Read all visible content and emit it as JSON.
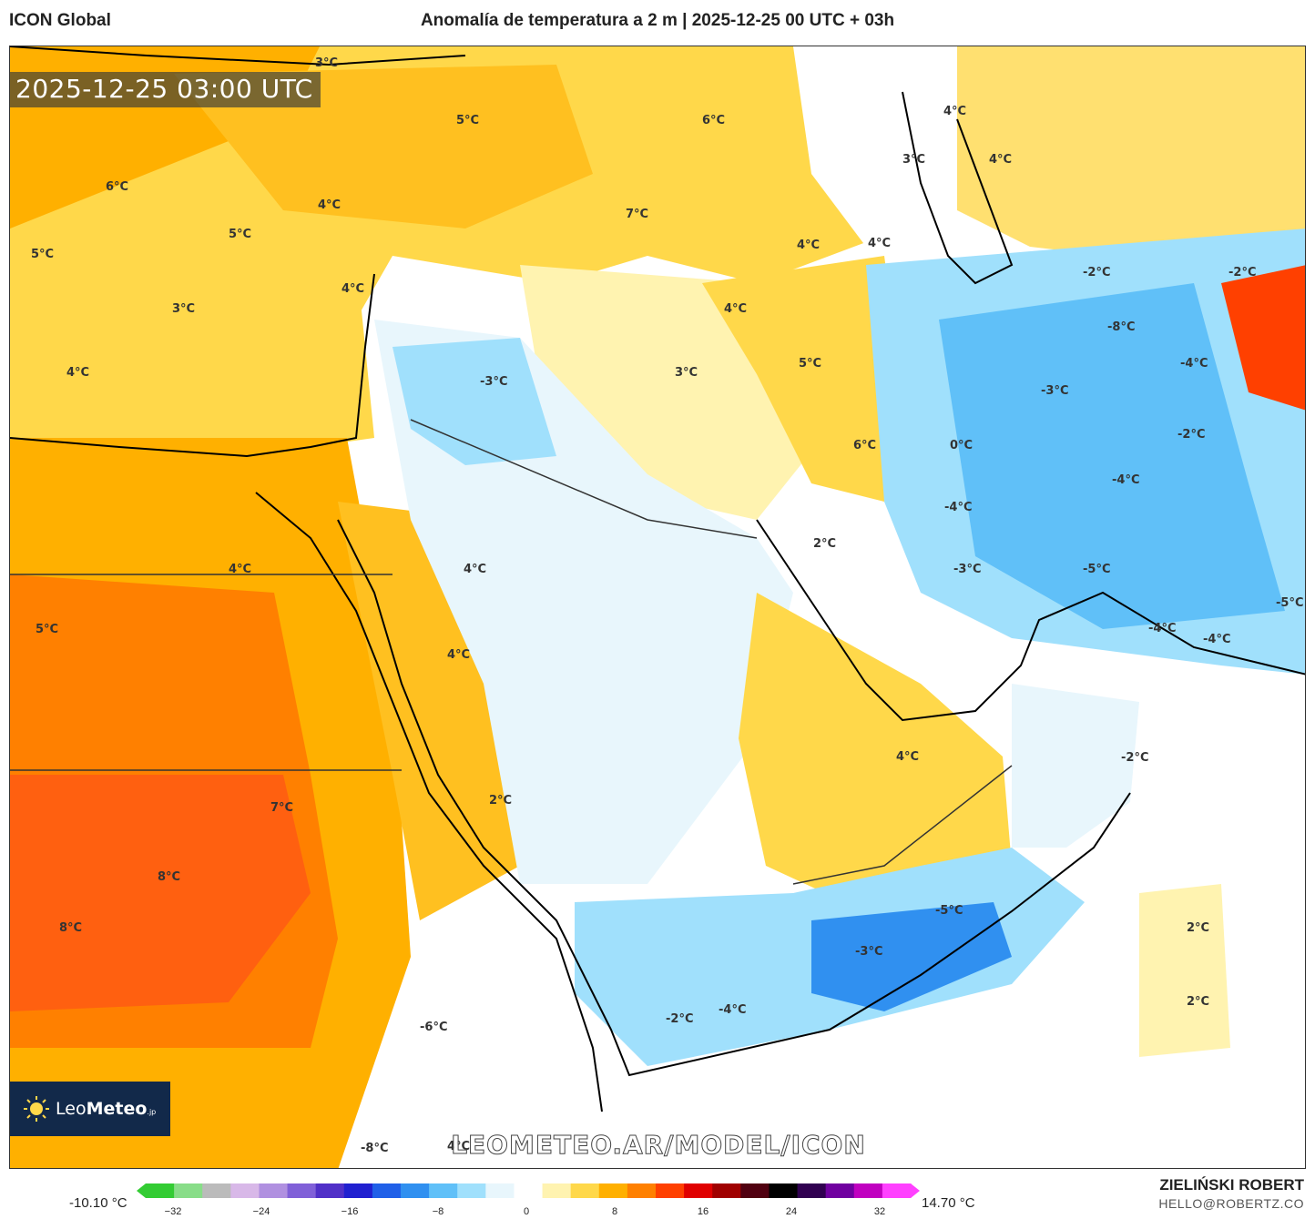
{
  "header": {
    "model_name": "ICON Global",
    "title": "Anomalía de temperatura a 2 m | 2025-12-25 00 UTC + 03h"
  },
  "map": {
    "timestamp": "2025-12-25 03:00 UTC",
    "watermark": "LEOMETEO.AR/MODEL/ICON",
    "logo_text_main": "Leo",
    "logo_text_bold": "Meteo",
    "logo_text_small": ".jp",
    "logo_icon": "sun-icon",
    "labels": [
      {
        "text": "3°C"
      },
      {
        "text": "5°C"
      },
      {
        "text": "6°C"
      },
      {
        "text": "4°C"
      },
      {
        "text": "3°C"
      },
      {
        "text": "4°C"
      },
      {
        "text": "6°C"
      },
      {
        "text": "4°C"
      },
      {
        "text": "5°C"
      },
      {
        "text": "5°C"
      },
      {
        "text": "4°C"
      },
      {
        "text": "7°C"
      },
      {
        "text": "4°C"
      },
      {
        "text": "-2°C"
      },
      {
        "text": "-2°C"
      },
      {
        "text": "3°C"
      },
      {
        "text": "4°C"
      },
      {
        "text": "-3°C"
      },
      {
        "text": "4°C"
      },
      {
        "text": "-8°C"
      },
      {
        "text": "3°C"
      },
      {
        "text": "5°C"
      },
      {
        "text": "-3°C"
      },
      {
        "text": "-4°C"
      },
      {
        "text": "4°C"
      },
      {
        "text": "6°C"
      },
      {
        "text": "0°C"
      },
      {
        "text": "-2°C"
      },
      {
        "text": "-4°C"
      },
      {
        "text": "-4°C"
      },
      {
        "text": "2°C"
      },
      {
        "text": "4°C"
      },
      {
        "text": "4°C"
      },
      {
        "text": "5°C"
      },
      {
        "text": "-3°C"
      },
      {
        "text": "-5°C"
      },
      {
        "text": "-5°C"
      },
      {
        "text": "-4°C"
      },
      {
        "text": "-4°C"
      },
      {
        "text": "4°C"
      },
      {
        "text": "4°C"
      },
      {
        "text": "-2°C"
      },
      {
        "text": "7°C"
      },
      {
        "text": "2°C"
      },
      {
        "text": "8°C"
      },
      {
        "text": "-5°C"
      },
      {
        "text": "8°C"
      },
      {
        "text": "-3°C"
      },
      {
        "text": "2°C"
      },
      {
        "text": "2°C"
      },
      {
        "text": "-2°C"
      },
      {
        "text": "-4°C"
      },
      {
        "text": "-6°C"
      },
      {
        "text": "-8°C"
      },
      {
        "text": "4°C"
      }
    ]
  },
  "colorbar": {
    "min_label": "-10.10 °C",
    "max_label": "14.70 °C",
    "ticks": [
      "−32",
      "−24",
      "−16",
      "−8",
      "0",
      "8",
      "16",
      "24",
      "32"
    ],
    "colors": [
      "#33cc33",
      "#88dd88",
      "#bbbbbb",
      "#d8b8e8",
      "#b090e0",
      "#8060d8",
      "#5030c8",
      "#2020d0",
      "#2060e8",
      "#3090f0",
      "#60c0f8",
      "#a0e0fc",
      "#e8f6fc",
      "#ffffff",
      "#fff3b0",
      "#ffd84a",
      "#ffb000",
      "#ff8000",
      "#ff4000",
      "#e00000",
      "#a00000",
      "#500010",
      "#000000",
      "#300050",
      "#7000a0",
      "#c000c0",
      "#ff40ff"
    ]
  },
  "credits": {
    "author": "ZIELIŃSKI ROBERT",
    "email": "HELLO@ROBERTZ.CO"
  }
}
